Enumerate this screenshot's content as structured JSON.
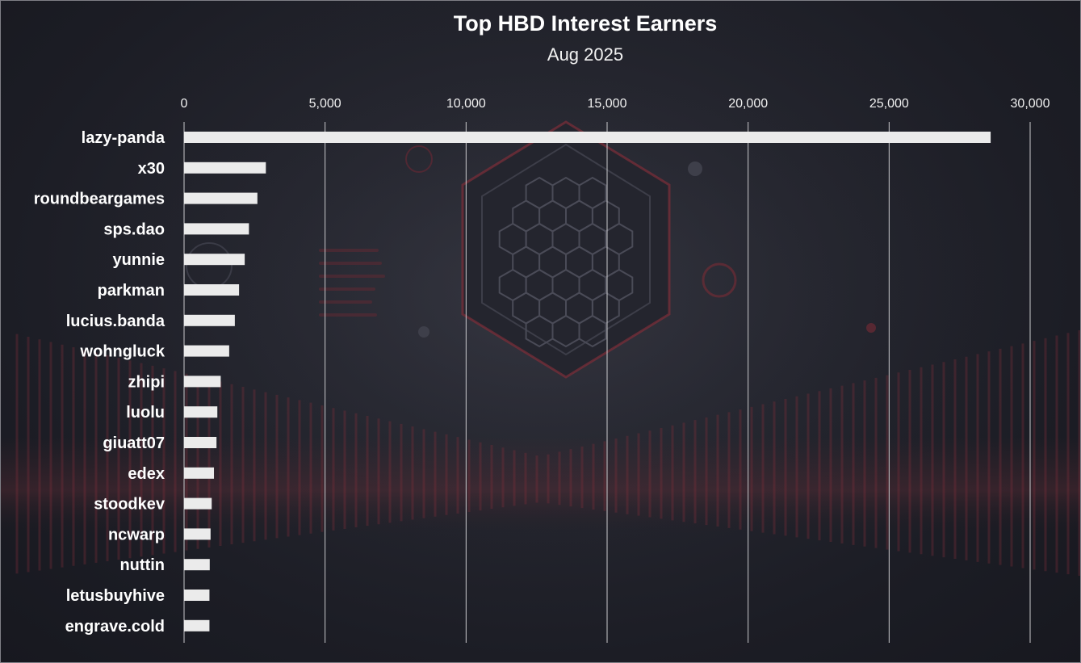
{
  "colors": {
    "background": "#1e1f27",
    "bar": "#ebebeb",
    "text": "#ffffff",
    "gridline": "#c9c9cc",
    "accent": "#8c2a35"
  },
  "chart_data": {
    "type": "bar",
    "orientation": "horizontal",
    "title": "Top HBD Interest Earners",
    "subtitle": "Aug 2025",
    "xlabel": "",
    "ylabel": "",
    "xlim": [
      0,
      30000
    ],
    "x_ticks": [
      0,
      5000,
      10000,
      15000,
      20000,
      25000,
      30000
    ],
    "x_tick_labels": [
      "0",
      "5,000",
      "10,000",
      "15,000",
      "20,000",
      "25,000",
      "30,000"
    ],
    "x_axis_position": "top",
    "grid": true,
    "legend": "none",
    "categories": [
      "lazy-panda",
      "x30",
      "roundbeargames",
      "sps.dao",
      "yunnie",
      "parkman",
      "lucius.banda",
      "wohngluck",
      "zhipi",
      "luolu",
      "giuatt07",
      "edex",
      "stoodkev",
      "ncwarp",
      "nuttin",
      "letusbuyhive",
      "engrave.cold"
    ],
    "values": [
      28600,
      2900,
      2600,
      2300,
      2150,
      1950,
      1800,
      1600,
      1300,
      1180,
      1150,
      1060,
      980,
      940,
      910,
      900,
      900
    ]
  }
}
